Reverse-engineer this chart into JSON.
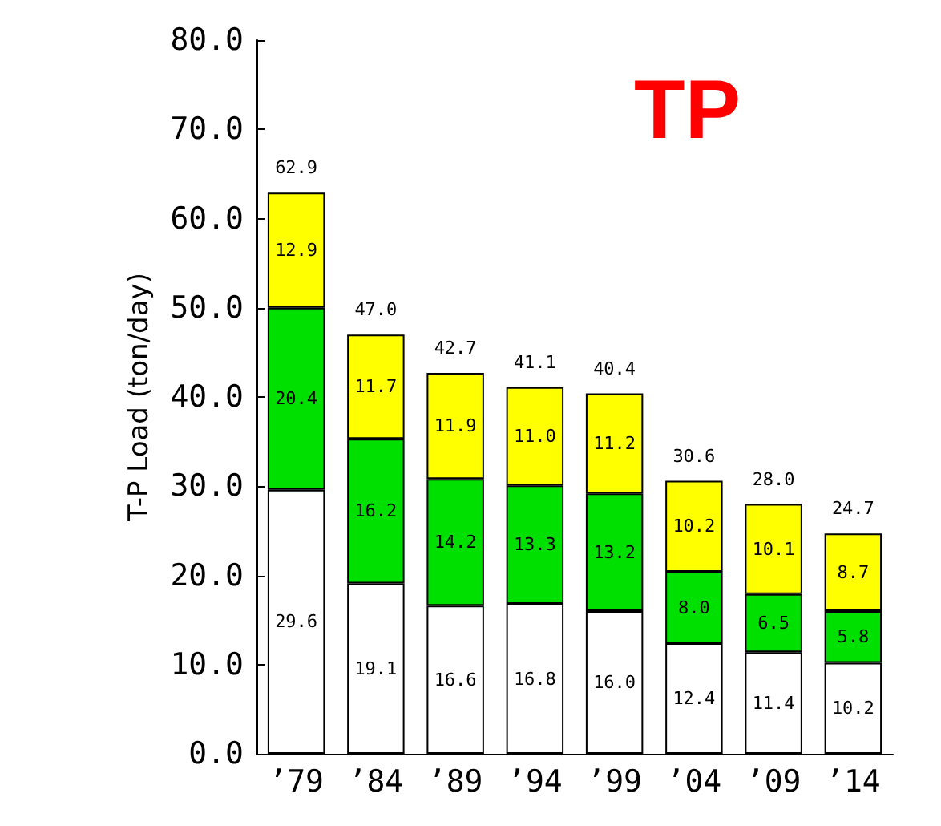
{
  "chart_data": {
    "type": "bar",
    "title": "TP",
    "ylabel": "T-P Load (ton/day)",
    "stacked": true,
    "categories": [
      "’79",
      "’84",
      "’89",
      "’94",
      "’99",
      "’04",
      "’09",
      "’14"
    ],
    "series": [
      {
        "color": "#ffffff",
        "values": [
          29.6,
          19.1,
          16.6,
          16.8,
          16.0,
          12.4,
          11.4,
          10.2
        ],
        "value_labels": [
          "29.6",
          "19.1",
          "16.6",
          "16.8",
          "16.0",
          "12.4",
          "11.4",
          "10.2"
        ]
      },
      {
        "color": "#00e000",
        "values": [
          20.4,
          16.2,
          14.2,
          13.3,
          13.2,
          8.0,
          6.5,
          5.8
        ],
        "value_labels": [
          "20.4",
          "16.2",
          "14.2",
          "13.3",
          "13.2",
          "8.0",
          "6.5",
          "5.8"
        ]
      },
      {
        "color": "#ffff00",
        "values": [
          12.9,
          11.7,
          11.9,
          11.0,
          11.2,
          10.2,
          10.1,
          8.7
        ],
        "value_labels": [
          "12.9",
          "11.7",
          "11.9",
          "11.0",
          "11.2",
          "10.2",
          "10.1",
          "8.7"
        ]
      }
    ],
    "totals": [
      "62.9",
      "47.0",
      "42.7",
      "41.1",
      "40.4",
      "30.6",
      "28.0",
      "24.7"
    ],
    "ylim": [
      0,
      80
    ],
    "yticks": [
      {
        "value": 0,
        "label": "0.0"
      },
      {
        "value": 10,
        "label": "10.0"
      },
      {
        "value": 20,
        "label": "20.0"
      },
      {
        "value": 30,
        "label": "30.0"
      },
      {
        "value": 40,
        "label": "40.0"
      },
      {
        "value": 50,
        "label": "50.0"
      },
      {
        "value": 60,
        "label": "60.0"
      },
      {
        "value": 70,
        "label": "70.0"
      },
      {
        "value": 80,
        "label": "80.0"
      }
    ],
    "grid": false
  }
}
